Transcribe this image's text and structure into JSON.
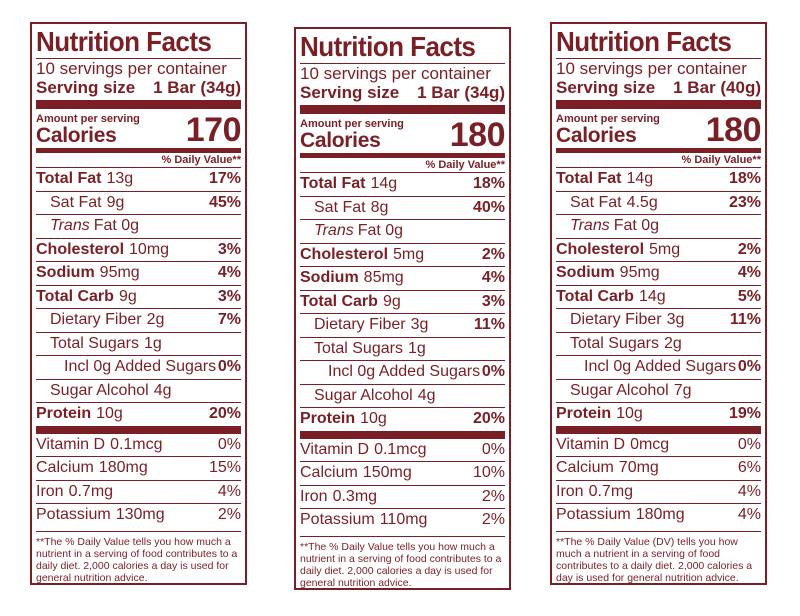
{
  "colors": {
    "brand": "#7a1f25"
  },
  "common": {
    "title": "Nutrition Facts",
    "servings_per_container": "10 servings per container",
    "serving_size_label": "Serving size",
    "amount_per_serving": "Amount per serving",
    "calories_label": "Calories",
    "dv_header": "% Daily Value**",
    "labels": {
      "total_fat": "Total Fat",
      "sat_fat": "Sat Fat",
      "trans_fat_italic": "Trans",
      "trans_fat_rest": "Fat 0g",
      "cholesterol": "Cholesterol",
      "sodium": "Sodium",
      "total_carb": "Total Carb",
      "dietary_fiber": "Dietary Fiber",
      "total_sugars": "Total Sugars",
      "incl_added_sugars": "Incl 0g Added Sugars",
      "sugar_alcohol": "Sugar Alcohol",
      "protein": "Protein",
      "vitamin_d": "Vitamin D",
      "calcium": "Calcium",
      "iron": "Iron",
      "potassium": "Potassium"
    }
  },
  "labels": [
    {
      "serving_size_value": "1 Bar (34g)",
      "calories": "170",
      "total_fat": "13g",
      "total_fat_dv": "17%",
      "sat_fat": "9g",
      "sat_fat_dv": "45%",
      "cholesterol": "10mg",
      "cholesterol_dv": "3%",
      "sodium": "95mg",
      "sodium_dv": "4%",
      "total_carb": "9g",
      "total_carb_dv": "3%",
      "dietary_fiber": "2g",
      "dietary_fiber_dv": "7%",
      "total_sugars": "1g",
      "added_sugars_dv": "0%",
      "sugar_alcohol": "4g",
      "protein": "10g",
      "protein_dv": "20%",
      "vitamin_d": "0.1mcg",
      "vitamin_d_dv": "0%",
      "calcium": "180mg",
      "calcium_dv": "15%",
      "iron": "0.7mg",
      "iron_dv": "4%",
      "potassium": "130mg",
      "potassium_dv": "2%",
      "footnote": "**The % Daily Value tells you how much a nutrient in a serving of food contributes to a daily diet. 2,000 calories a day is used for general nutrition advice."
    },
    {
      "serving_size_value": "1 Bar (34g)",
      "calories": "180",
      "total_fat": "14g",
      "total_fat_dv": "18%",
      "sat_fat": "8g",
      "sat_fat_dv": "40%",
      "cholesterol": "5mg",
      "cholesterol_dv": "2%",
      "sodium": "85mg",
      "sodium_dv": "4%",
      "total_carb": "9g",
      "total_carb_dv": "3%",
      "dietary_fiber": "3g",
      "dietary_fiber_dv": "11%",
      "total_sugars": "1g",
      "added_sugars_dv": "0%",
      "sugar_alcohol": "4g",
      "protein": "10g",
      "protein_dv": "20%",
      "vitamin_d": "0.1mcg",
      "vitamin_d_dv": "0%",
      "calcium": "150mg",
      "calcium_dv": "10%",
      "iron": "0.3mg",
      "iron_dv": "2%",
      "potassium": "110mg",
      "potassium_dv": "2%",
      "footnote": "**The % Daily Value tells you how much a nutrient in a serving of food contributes to a daily diet. 2,000 calories a day is used for general nutrition advice."
    },
    {
      "serving_size_value": "1 Bar (40g)",
      "calories": "180",
      "total_fat": "14g",
      "total_fat_dv": "18%",
      "sat_fat": "4.5g",
      "sat_fat_dv": "23%",
      "cholesterol": "5mg",
      "cholesterol_dv": "2%",
      "sodium": "95mg",
      "sodium_dv": "4%",
      "total_carb": "14g",
      "total_carb_dv": "5%",
      "dietary_fiber": "3g",
      "dietary_fiber_dv": "11%",
      "total_sugars": "2g",
      "added_sugars_dv": "0%",
      "sugar_alcohol": "7g",
      "protein": "10g",
      "protein_dv": "19%",
      "vitamin_d": "0mcg",
      "vitamin_d_dv": "0%",
      "calcium": "70mg",
      "calcium_dv": "6%",
      "iron": "0.7mg",
      "iron_dv": "4%",
      "potassium": "180mg",
      "potassium_dv": "4%",
      "footnote": "**The % Daily Value (DV) tells you how much a nutrient in a serving of food contributes to a daily diet. 2,000 calories a day is used for general nutrition advice."
    }
  ]
}
